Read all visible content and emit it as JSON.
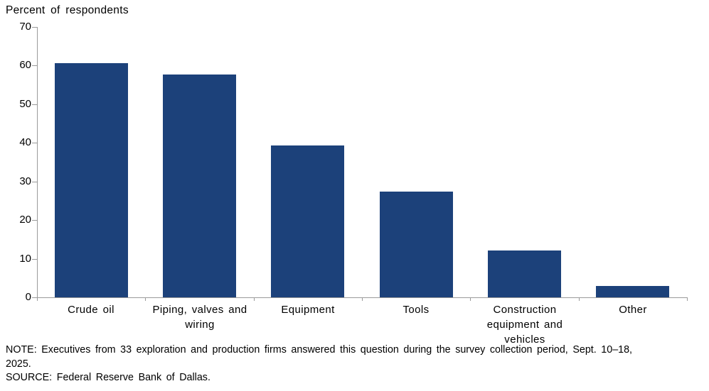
{
  "chart_data": {
    "type": "bar",
    "title": "Percent of respondents",
    "ylabel": "Percent of respondents",
    "xlabel": "",
    "categories": [
      "Crude oil",
      "Piping, valves and wiring",
      "Equipment",
      "Tools",
      "Construction equipment and vehicles",
      "Other"
    ],
    "values": [
      60.6,
      57.6,
      39.4,
      27.3,
      12.1,
      3.0
    ],
    "ylim": [
      0,
      70
    ],
    "yticks": [
      0,
      10,
      20,
      30,
      40,
      50,
      60,
      70
    ],
    "grid": false,
    "legend_position": "none",
    "bar_color": "#1c417a",
    "axis_color": "#9a9a9a"
  },
  "footnotes": {
    "note_line1": "NOTE: Executives from 33 exploration and production firms answered this question during the survey collection period, Sept. 10–18,",
    "note_line2": "2025.",
    "source": "SOURCE: Federal Reserve Bank of Dallas."
  }
}
